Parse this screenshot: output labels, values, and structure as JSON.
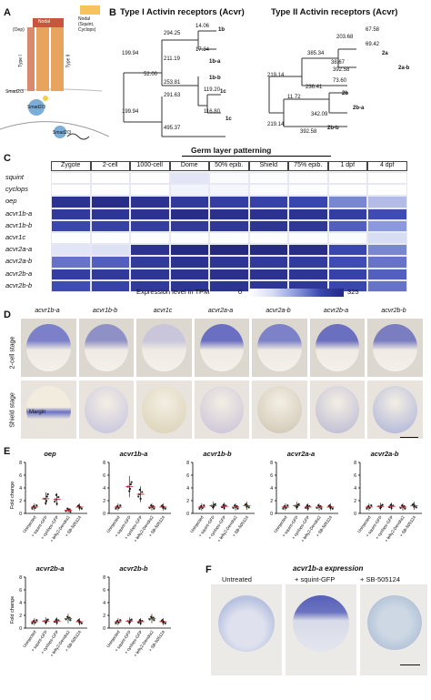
{
  "panelA": {
    "label": "A",
    "nodal": "Nodal",
    "ligands": "Nodal\n(Squint,\nCyclops)",
    "oep": "(Oep)",
    "typeI": "Type I",
    "typeII": "Type II",
    "smad_top": "Smad2/3",
    "smad_mid": "Smad2/3",
    "smad_nuc": "Smad2/3"
  },
  "panelB": {
    "label": "B",
    "title1": "Type I Activin receptors (Acvr)",
    "title2": "Type II Activin receptors (Acvr)",
    "tree1": {
      "values": [
        "14.06",
        "17.34",
        "294.25",
        "211.19",
        "199.94",
        "52.00",
        "253.81",
        "291.63",
        "119.20",
        "116.80",
        "495.37",
        "199.94"
      ],
      "leaves": [
        "1b",
        "1b-a",
        "1b-b",
        "1c",
        "1c"
      ]
    },
    "tree2": {
      "values": [
        "203.68",
        "67.58",
        "69.42",
        "385.34",
        "38.67",
        "392.58",
        "219.14",
        "73.60",
        "236.41",
        "11.72",
        "219.14",
        "342.09",
        "392.58"
      ],
      "leaves": [
        "2a",
        "2a-b",
        "2b",
        "2b-a",
        "2b-b"
      ]
    }
  },
  "panelC": {
    "label": "C",
    "header": "Germ layer patterning",
    "columns": [
      "Zygote",
      "2-cell",
      "1000-cell",
      "Dome",
      "50% epib.",
      "Shield",
      "75% epib.",
      "1 dpf",
      "4 dpf"
    ],
    "genes": [
      "squint",
      "cyclops",
      "oep",
      "acvr1b-a",
      "acvr1b-b",
      "acvr1c",
      "acvr2a-a",
      "acvr2a-b",
      "acvr2b-a",
      "acvr2b-b"
    ],
    "tpm": [
      [
        0,
        0,
        2,
        60,
        10,
        5,
        4,
        0,
        0
      ],
      [
        0,
        0,
        0,
        25,
        20,
        10,
        5,
        0,
        0
      ],
      [
        300,
        310,
        300,
        280,
        270,
        260,
        250,
        180,
        120
      ],
      [
        280,
        290,
        300,
        310,
        305,
        300,
        295,
        270,
        240
      ],
      [
        250,
        260,
        270,
        280,
        285,
        290,
        285,
        220,
        160
      ],
      [
        5,
        5,
        5,
        5,
        5,
        5,
        5,
        10,
        80
      ],
      [
        60,
        70,
        300,
        320,
        325,
        320,
        310,
        250,
        180
      ],
      [
        200,
        220,
        280,
        300,
        290,
        280,
        275,
        240,
        200
      ],
      [
        270,
        280,
        290,
        300,
        305,
        300,
        290,
        260,
        220
      ],
      [
        240,
        260,
        280,
        290,
        295,
        290,
        285,
        250,
        200
      ]
    ],
    "scale_label": "Expression level in TPM",
    "scale_min": "0",
    "scale_max": "325"
  },
  "panelD": {
    "label": "D",
    "genes": [
      "acvr1b-a",
      "acvr1b-b",
      "acvr1c",
      "acvr2a-a",
      "acvr2a-b",
      "acvr2b-a",
      "acvr2b-b"
    ],
    "row1": "2-cell stage",
    "row2": "Shield stage",
    "margin": "Margin"
  },
  "panelE": {
    "label": "E",
    "ylabel": "Fold change",
    "xcats": [
      "Uninjected",
      "+ squint-GFP",
      "+ cyclops-GFP",
      "+ lefty2-Dendra2",
      "+ SB-505124"
    ],
    "plots": [
      {
        "title": "oep",
        "ymax": 8,
        "means": [
          1,
          2.3,
          2.2,
          0.5,
          1.0
        ]
      },
      {
        "title": "acvr1b-a",
        "ymax": 8,
        "means": [
          1,
          4.2,
          3,
          1,
          1
        ]
      },
      {
        "title": "acvr1b-b",
        "ymax": 8,
        "means": [
          1,
          1.2,
          1.1,
          1,
          1.2
        ]
      },
      {
        "title": "acvr2a-a",
        "ymax": 8,
        "means": [
          1,
          1.2,
          1,
          1,
          1
        ]
      },
      {
        "title": "acvr2a-b",
        "ymax": 8,
        "means": [
          1,
          1.1,
          1.1,
          1,
          1.2
        ]
      },
      {
        "title": "acvr2b-a",
        "ymax": 8,
        "means": [
          1,
          1.1,
          1.1,
          1.5,
          1
        ]
      },
      {
        "title": "acvr2b-b",
        "ymax": 8,
        "means": [
          1,
          1.1,
          1,
          1.5,
          1
        ]
      }
    ]
  },
  "panelF": {
    "label": "F",
    "title": "acvr1b-a expression",
    "conditions": [
      "Untreated",
      "+ squint-GFP",
      "+ SB-505124"
    ]
  }
}
